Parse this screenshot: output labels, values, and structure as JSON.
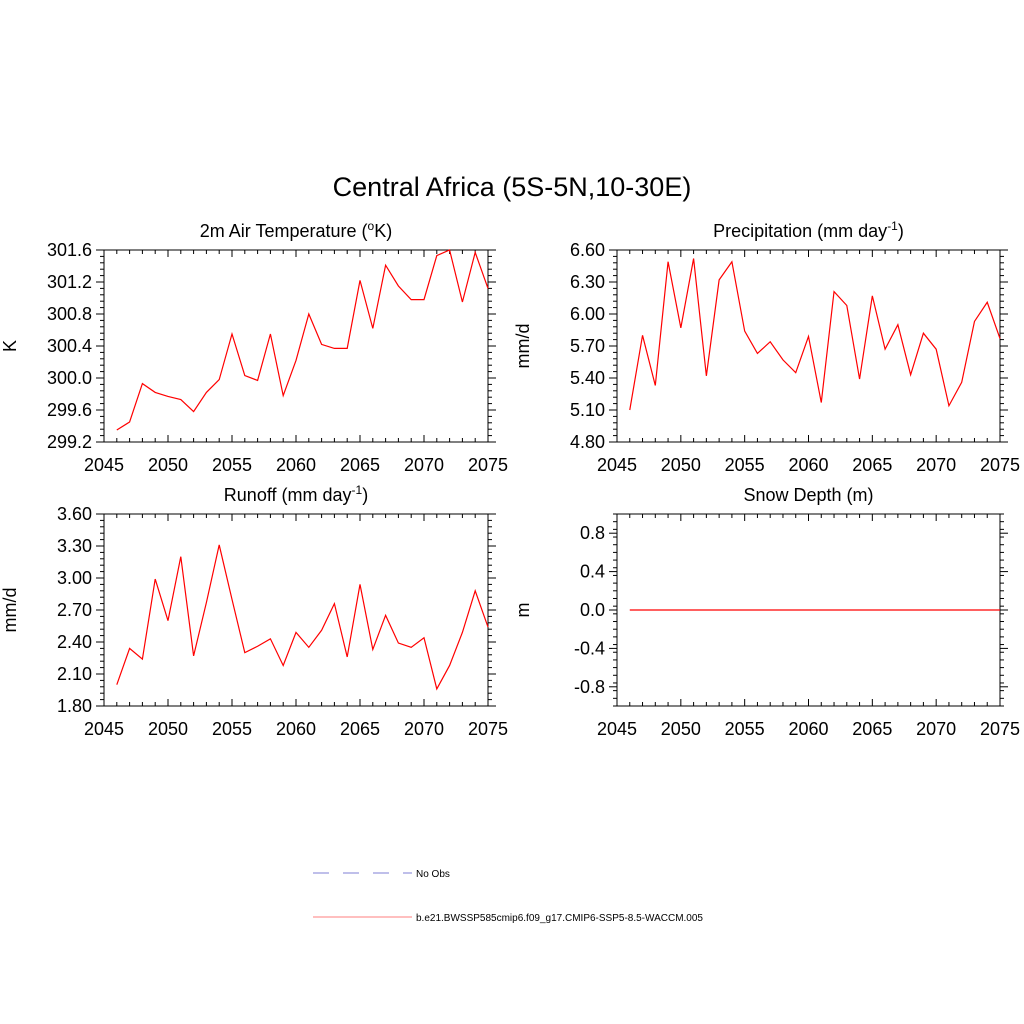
{
  "figure_title": "Central Africa (5S-5N,10-30E)",
  "legend": [
    {
      "label": "No Obs",
      "color": "#9999dd",
      "style": "dashed"
    },
    {
      "label": "b.e21.BWSSP585cmip6.f09_g17.CMIP6-SSP5-8.5-WACCM.005",
      "color": "#ff9999",
      "style": "solid"
    }
  ],
  "chart_data": [
    {
      "type": "line",
      "title": "2m Air Temperature (oK)",
      "title_parts": {
        "pre": "2m Air Temperature (",
        "sup": "o",
        "post": "K)"
      },
      "xlabel": "",
      "ylabel": "K",
      "xlim": [
        2045,
        2075
      ],
      "ylim": [
        299.2,
        301.6
      ],
      "xticks": [
        "2045",
        "2050",
        "2055",
        "2060",
        "2065",
        "2070",
        "2075"
      ],
      "yticks": [
        "299.2",
        "299.6",
        "300.0",
        "300.4",
        "300.8",
        "301.2",
        "301.6"
      ],
      "x": [
        2046,
        2047,
        2048,
        2049,
        2050,
        2051,
        2052,
        2053,
        2054,
        2055,
        2056,
        2057,
        2058,
        2059,
        2060,
        2061,
        2062,
        2063,
        2064,
        2065,
        2066,
        2067,
        2068,
        2069,
        2070,
        2071,
        2072,
        2073,
        2074,
        2075
      ],
      "series": [
        {
          "color": "#ff0000",
          "values": [
            299.35,
            299.45,
            299.93,
            299.82,
            299.77,
            299.73,
            299.58,
            299.82,
            299.98,
            300.55,
            300.03,
            299.97,
            300.55,
            299.78,
            300.22,
            300.8,
            300.42,
            300.37,
            300.37,
            301.22,
            300.62,
            301.41,
            301.15,
            300.98,
            300.98,
            301.53,
            301.6,
            300.95,
            301.57,
            301.12
          ]
        }
      ]
    },
    {
      "type": "line",
      "title": "Precipitation (mm day-1)",
      "title_parts": {
        "pre": "Precipitation (mm day",
        "sup": "-1",
        "post": ")"
      },
      "xlabel": "",
      "ylabel": "mm/d",
      "xlim": [
        2045,
        2075
      ],
      "ylim": [
        4.8,
        6.6
      ],
      "xticks": [
        "2045",
        "2050",
        "2055",
        "2060",
        "2065",
        "2070",
        "2075"
      ],
      "yticks": [
        "4.80",
        "5.10",
        "5.40",
        "5.70",
        "6.00",
        "6.30",
        "6.60"
      ],
      "x": [
        2046,
        2047,
        2048,
        2049,
        2050,
        2051,
        2052,
        2053,
        2054,
        2055,
        2056,
        2057,
        2058,
        2059,
        2060,
        2061,
        2062,
        2063,
        2064,
        2065,
        2066,
        2067,
        2068,
        2069,
        2070,
        2071,
        2072,
        2073,
        2074,
        2075
      ],
      "series": [
        {
          "color": "#ff0000",
          "values": [
            5.1,
            5.8,
            5.33,
            6.49,
            5.87,
            6.52,
            5.42,
            6.32,
            6.49,
            5.84,
            5.63,
            5.74,
            5.57,
            5.45,
            5.79,
            5.17,
            6.21,
            6.08,
            5.39,
            6.17,
            5.67,
            5.9,
            5.43,
            5.82,
            5.67,
            5.14,
            5.36,
            5.93,
            6.11,
            5.77
          ]
        }
      ]
    },
    {
      "type": "line",
      "title": "Runoff (mm day-1)",
      "title_parts": {
        "pre": "Runoff (mm day",
        "sup": "-1",
        "post": ")"
      },
      "xlabel": "",
      "ylabel": "mm/d",
      "xlim": [
        2045,
        2075
      ],
      "ylim": [
        1.8,
        3.6
      ],
      "xticks": [
        "2045",
        "2050",
        "2055",
        "2060",
        "2065",
        "2070",
        "2075"
      ],
      "yticks": [
        "1.80",
        "2.10",
        "2.40",
        "2.70",
        "3.00",
        "3.30",
        "3.60"
      ],
      "x": [
        2046,
        2047,
        2048,
        2049,
        2050,
        2051,
        2052,
        2053,
        2054,
        2055,
        2056,
        2057,
        2058,
        2059,
        2060,
        2061,
        2062,
        2063,
        2064,
        2065,
        2066,
        2067,
        2068,
        2069,
        2070,
        2071,
        2072,
        2073,
        2074,
        2075
      ],
      "series": [
        {
          "color": "#ff0000",
          "values": [
            2.0,
            2.34,
            2.24,
            2.99,
            2.6,
            3.2,
            2.27,
            2.77,
            3.31,
            2.8,
            2.3,
            2.36,
            2.43,
            2.18,
            2.49,
            2.35,
            2.51,
            2.76,
            2.26,
            2.94,
            2.33,
            2.65,
            2.39,
            2.35,
            2.44,
            1.96,
            2.18,
            2.49,
            2.88,
            2.54
          ]
        }
      ]
    },
    {
      "type": "line",
      "title": "Snow Depth (m)",
      "title_parts": {
        "pre": "Snow Depth (m)",
        "sup": "",
        "post": ""
      },
      "xlabel": "",
      "ylabel": "m",
      "xlim": [
        2045,
        2075
      ],
      "ylim": [
        -1.0,
        1.0
      ],
      "xticks": [
        "2045",
        "2050",
        "2055",
        "2060",
        "2065",
        "2070",
        "2075"
      ],
      "yticks": [
        "-0.8",
        "-0.4",
        "0.0",
        "0.4",
        "0.8"
      ],
      "ytick_values": [
        -0.8,
        -0.4,
        0.0,
        0.4,
        0.8
      ],
      "x": [
        2046,
        2047,
        2048,
        2049,
        2050,
        2051,
        2052,
        2053,
        2054,
        2055,
        2056,
        2057,
        2058,
        2059,
        2060,
        2061,
        2062,
        2063,
        2064,
        2065,
        2066,
        2067,
        2068,
        2069,
        2070,
        2071,
        2072,
        2073,
        2074,
        2075
      ],
      "series": [
        {
          "color": "#ff0000",
          "values": [
            0,
            0,
            0,
            0,
            0,
            0,
            0,
            0,
            0,
            0,
            0,
            0,
            0,
            0,
            0,
            0,
            0,
            0,
            0,
            0,
            0,
            0,
            0,
            0,
            0,
            0,
            0,
            0,
            0,
            0
          ]
        }
      ]
    }
  ]
}
